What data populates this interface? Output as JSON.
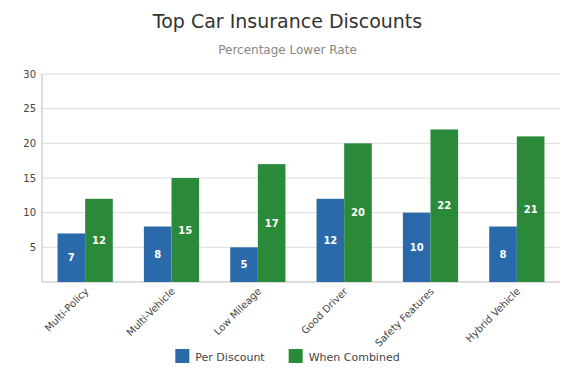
{
  "chart_data": {
    "type": "bar",
    "title": "Top Car Insurance Discounts",
    "subtitle": "Percentage Lower Rate",
    "categories": [
      "Multi-Policy",
      "Multi-Vehicle",
      "Low Mileage",
      "Good Driver",
      "Safety Features",
      "Hybrid Vehicle"
    ],
    "series": [
      {
        "name": "Per Discount",
        "color": "#2a6aaa",
        "values": [
          7,
          8,
          5,
          12,
          10,
          8
        ]
      },
      {
        "name": "When Combined",
        "color": "#2a8a3a",
        "values": [
          12,
          15,
          17,
          20,
          22,
          21
        ]
      }
    ],
    "ylim": [
      0,
      30
    ],
    "yticks": [
      5,
      10,
      15,
      20,
      25,
      30
    ],
    "grid": true,
    "legend": "bottom",
    "data_labels": true
  }
}
